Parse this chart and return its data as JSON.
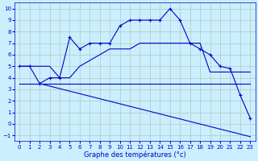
{
  "xlabel": "Graphe des températures (°c)",
  "bg_color": "#cceeff",
  "grid_color": "#aaccbb",
  "line_color": "#0000cc",
  "xlim": [
    -0.5,
    23.5
  ],
  "ylim": [
    -1.5,
    10.5
  ],
  "xticks": [
    0,
    1,
    2,
    3,
    4,
    5,
    6,
    7,
    8,
    9,
    10,
    11,
    12,
    13,
    14,
    15,
    16,
    17,
    18,
    19,
    20,
    21,
    22,
    23
  ],
  "yticks": [
    -1,
    0,
    1,
    2,
    3,
    4,
    5,
    6,
    7,
    8,
    9,
    10
  ],
  "series1_x": [
    0,
    1,
    2,
    3,
    4,
    5,
    6,
    7,
    8,
    9,
    10,
    11,
    12,
    13,
    14,
    15,
    16,
    17,
    18,
    19,
    20,
    21,
    22,
    23
  ],
  "series1_y": [
    5.0,
    5.0,
    3.5,
    4.0,
    4.0,
    7.5,
    6.5,
    7.0,
    7.0,
    7.0,
    8.5,
    9.0,
    9.0,
    9.0,
    9.0,
    10.0,
    9.0,
    7.0,
    6.5,
    6.0,
    5.0,
    4.8,
    2.5,
    0.5
  ],
  "series2_x": [
    0,
    1,
    2,
    3,
    4,
    5,
    6,
    7,
    8,
    9,
    10,
    11,
    12,
    13,
    14,
    15,
    16,
    17,
    18,
    19,
    20,
    21,
    22,
    23
  ],
  "series2_y": [
    5.0,
    5.0,
    5.0,
    5.0,
    4.0,
    4.0,
    5.0,
    5.5,
    6.0,
    6.5,
    6.5,
    6.5,
    7.0,
    7.0,
    7.0,
    7.0,
    7.0,
    7.0,
    7.0,
    4.5,
    4.5,
    4.5,
    4.5,
    4.5
  ],
  "series3_x": [
    0,
    23
  ],
  "series3_y": [
    3.5,
    3.5
  ],
  "series4_x": [
    2,
    23
  ],
  "series4_y": [
    3.5,
    -1.1
  ],
  "xlabel_fontsize": 6,
  "tick_fontsize": 5
}
